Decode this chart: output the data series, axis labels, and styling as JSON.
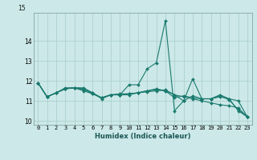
{
  "title": "",
  "xlabel": "Humidex (Indice chaleur)",
  "ylabel": "",
  "background_color": "#cce8e8",
  "grid_color": "#aacccc",
  "line_color": "#1a7a6e",
  "x": [
    0,
    1,
    2,
    3,
    4,
    5,
    6,
    7,
    8,
    9,
    10,
    11,
    12,
    13,
    14,
    15,
    16,
    17,
    18,
    19,
    20,
    21,
    22,
    23
  ],
  "series": [
    [
      11.9,
      11.2,
      11.4,
      11.6,
      11.65,
      11.65,
      11.4,
      11.1,
      11.3,
      11.3,
      11.8,
      11.8,
      12.6,
      12.9,
      15.0,
      10.5,
      11.0,
      12.1,
      11.1,
      11.1,
      11.3,
      11.1,
      10.5,
      10.2
    ],
    [
      11.9,
      11.2,
      11.4,
      11.65,
      11.65,
      11.5,
      11.35,
      11.15,
      11.3,
      11.35,
      11.35,
      11.4,
      11.45,
      11.5,
      11.55,
      11.3,
      11.2,
      11.1,
      11.0,
      10.9,
      10.8,
      10.75,
      10.65,
      10.2
    ],
    [
      11.9,
      11.2,
      11.4,
      11.6,
      11.65,
      11.55,
      11.4,
      11.15,
      11.3,
      11.3,
      11.35,
      11.4,
      11.5,
      11.6,
      11.5,
      11.15,
      11.25,
      11.15,
      11.1,
      11.1,
      11.2,
      11.1,
      11.0,
      10.2
    ],
    [
      11.9,
      11.2,
      11.4,
      11.6,
      11.65,
      11.6,
      11.35,
      11.15,
      11.3,
      11.3,
      11.3,
      11.4,
      11.5,
      11.55,
      11.5,
      11.3,
      11.0,
      11.25,
      11.1,
      11.1,
      11.25,
      11.05,
      10.55,
      10.2
    ]
  ],
  "ylim": [
    9.8,
    15.4
  ],
  "xlim": [
    -0.5,
    23.5
  ],
  "yticks": [
    10,
    11,
    12,
    13,
    14
  ],
  "top_label": "15",
  "xtick_labels": [
    "0",
    "1",
    "2",
    "3",
    "4",
    "5",
    "6",
    "7",
    "8",
    "9",
    "10",
    "11",
    "12",
    "13",
    "14",
    "15",
    "16",
    "17",
    "18",
    "19",
    "20",
    "21",
    "22",
    "23"
  ],
  "xlabel_fontsize": 6.0,
  "tick_fontsize": 5.0
}
